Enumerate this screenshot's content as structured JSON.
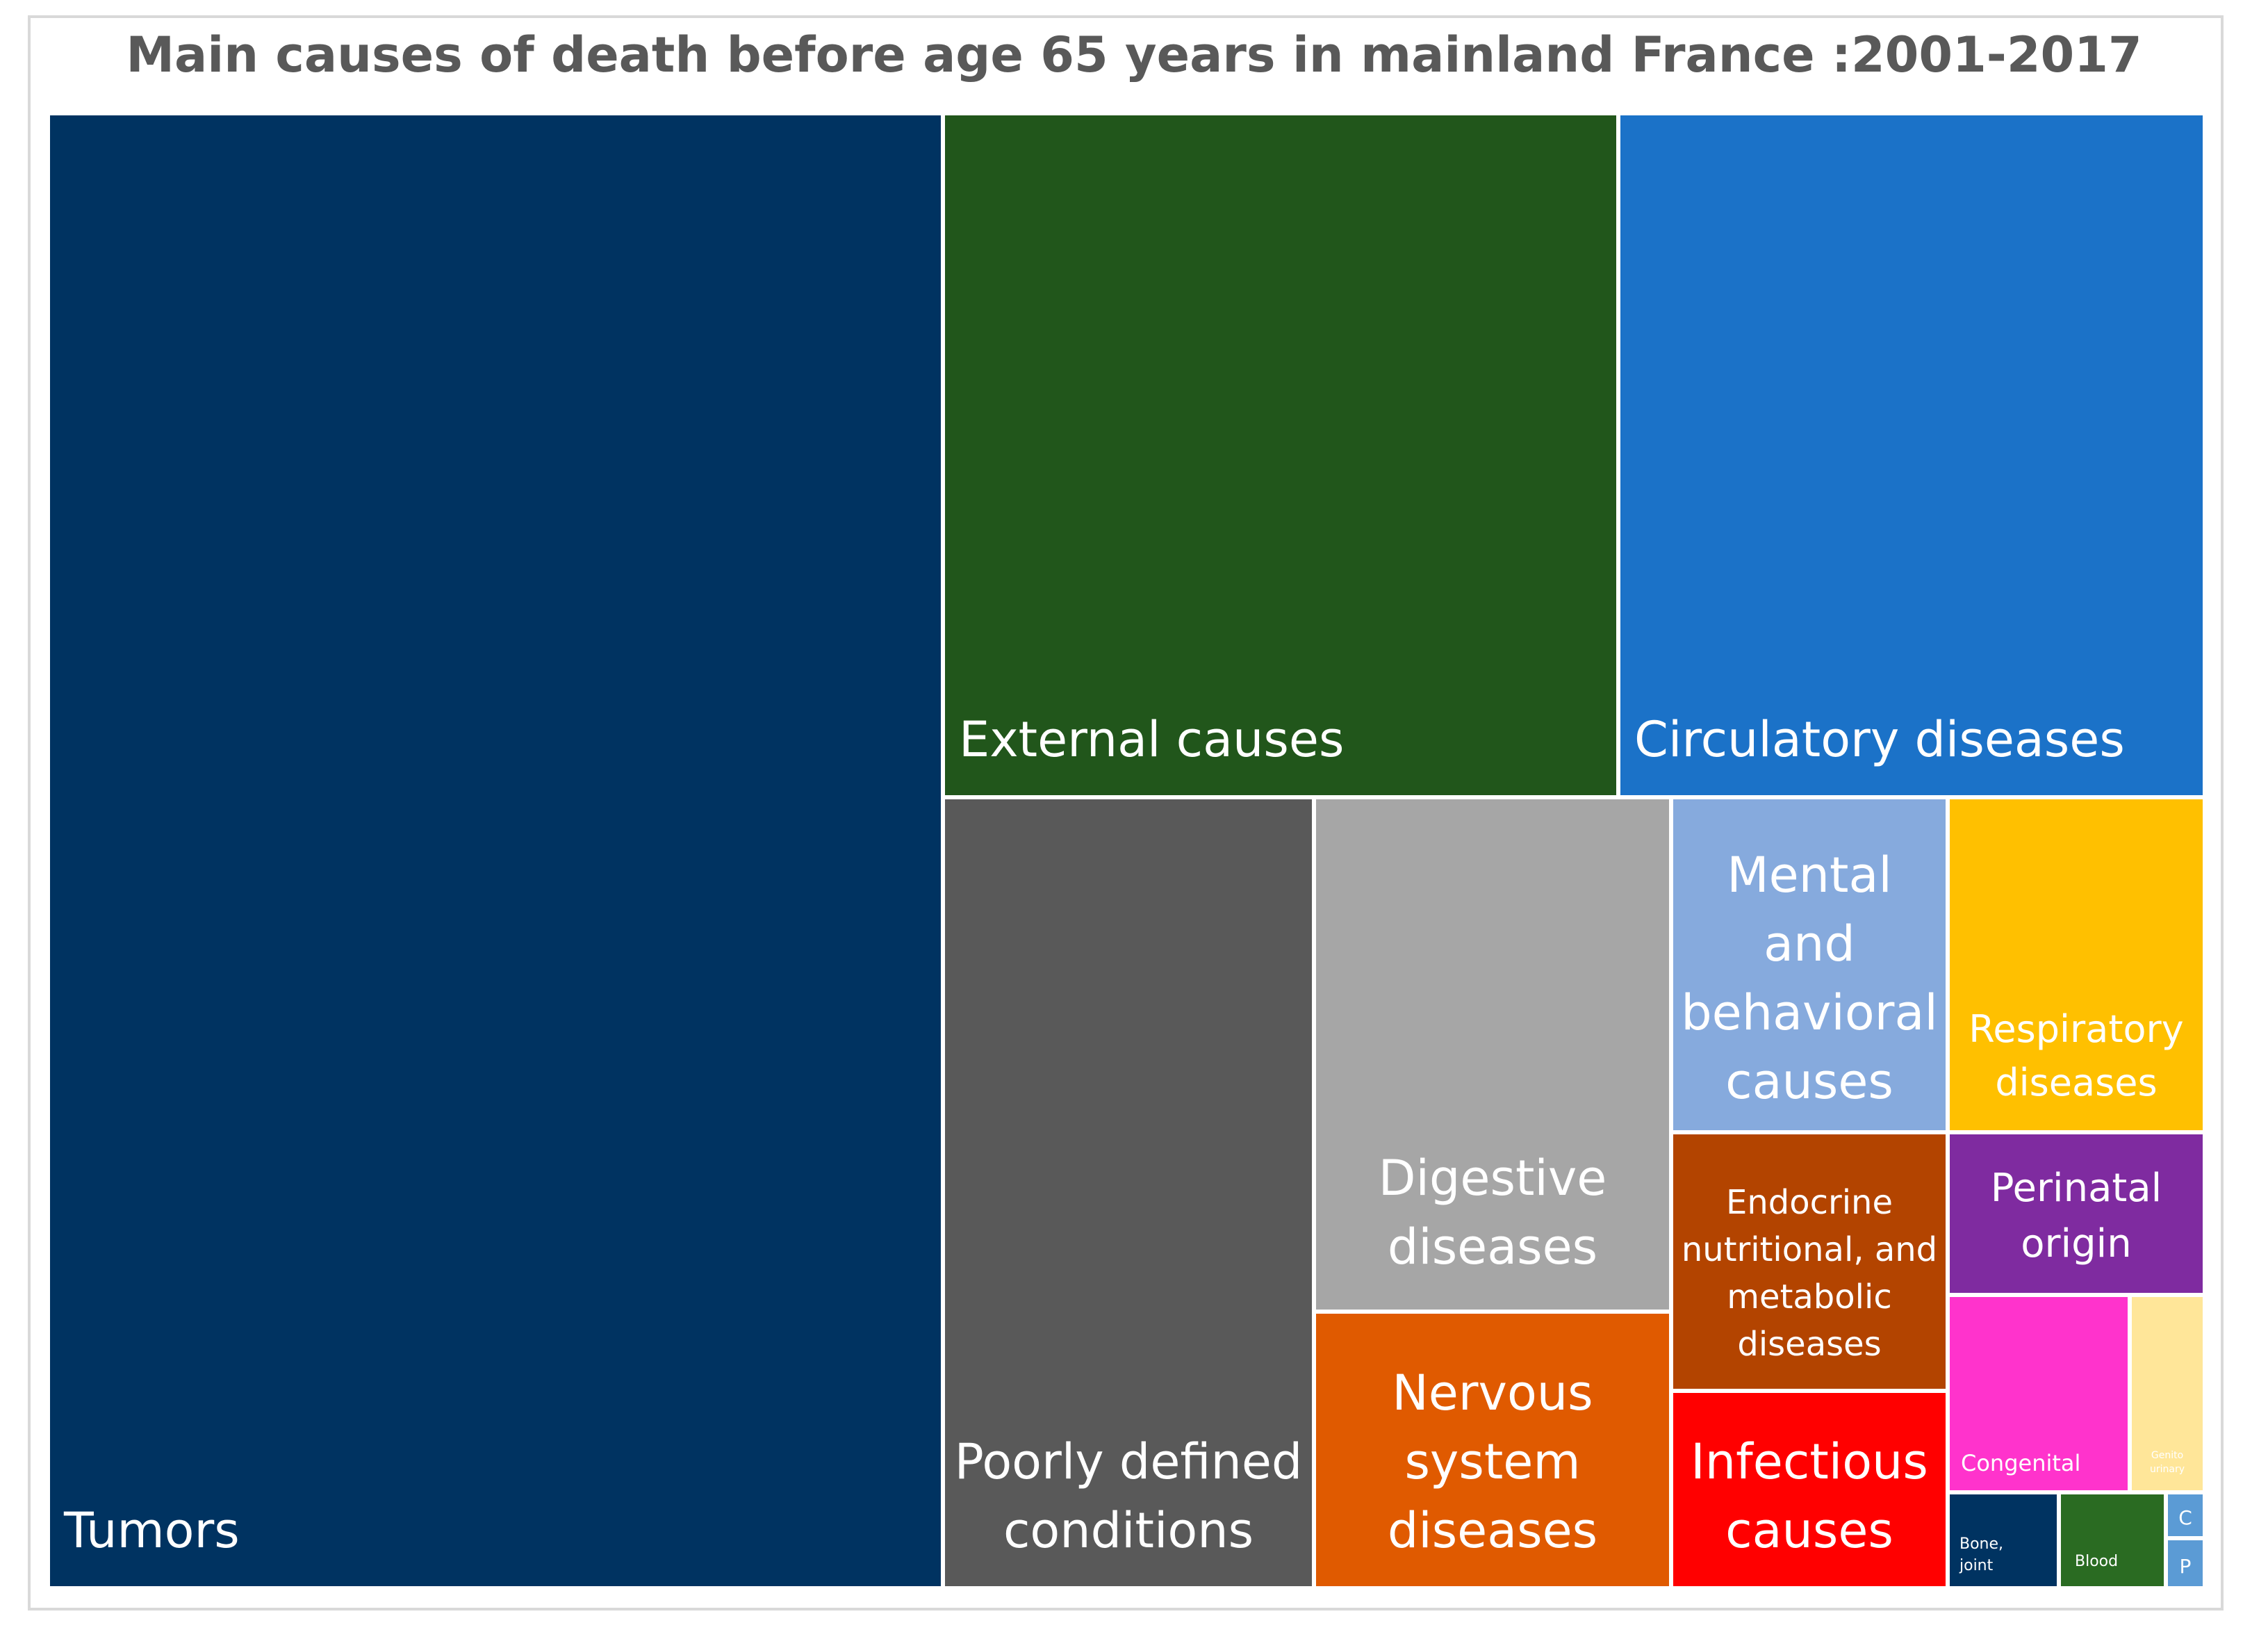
{
  "chart_data": {
    "type": "treemap",
    "title": "Main causes of death before age 65 years in mainland France :2001-2017",
    "items": [
      {
        "label": "Tumors",
        "color": "#003361"
      },
      {
        "label": "External causes",
        "color": "#21561b"
      },
      {
        "label": "Circulatory diseases",
        "color": "#1b72c8"
      },
      {
        "label": "Poorly defined conditions",
        "color": "#595959"
      },
      {
        "label": "Digestive diseases",
        "color": "#a6a6a6"
      },
      {
        "label": "Nervous system diseases",
        "color": "#e05a00"
      },
      {
        "label": "Mental and behavioral causes",
        "color": "#86aadd"
      },
      {
        "label": "Respiratory diseases",
        "color": "#ffc000"
      },
      {
        "label": "Endocrine nutritional, and metabolic diseases",
        "color": "#b34400"
      },
      {
        "label": "Infectious causes",
        "color": "#ff0000"
      },
      {
        "label": "Perinatal origin",
        "color": "#7f2ba0"
      },
      {
        "label": "Congenital",
        "color": "#ff33cc"
      },
      {
        "label": "Genito urinary",
        "color": "#ffe699"
      },
      {
        "label": "Bone, joint",
        "color": "#003361"
      },
      {
        "label": "Blood",
        "color": "#2a6b22"
      },
      {
        "label": "C",
        "color": "#5b9bd5"
      },
      {
        "label": "P",
        "color": "#5b9bd5"
      }
    ]
  }
}
